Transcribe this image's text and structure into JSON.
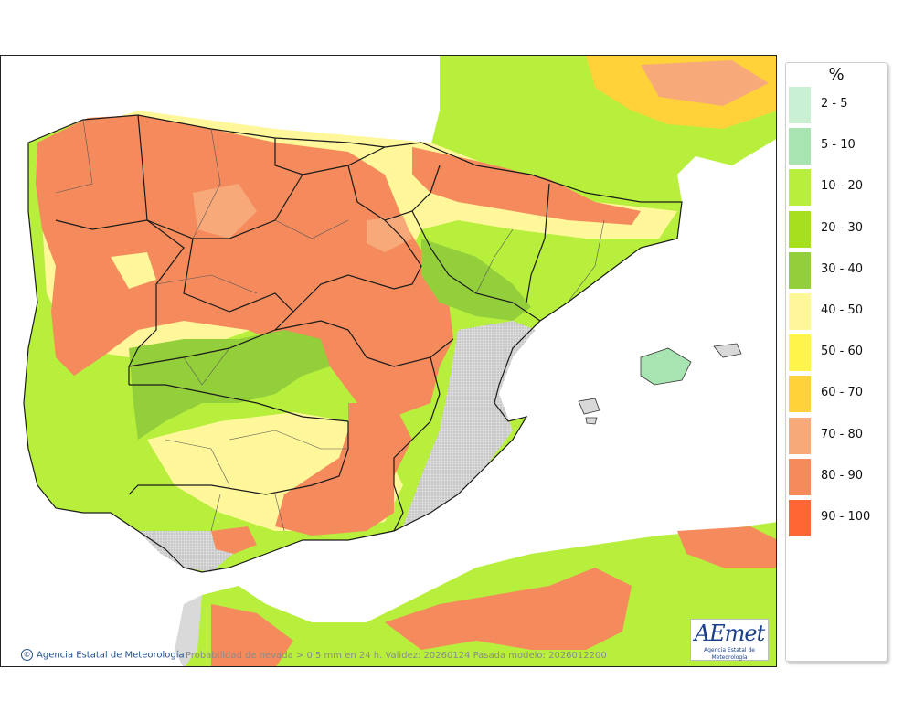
{
  "map": {
    "credit": "Agencia Estatal de Meteorología",
    "caption": "Probabilidad de nevada > 0.5 mm en 24 h. Validez: 20260124 Pasada modelo: 2026012200",
    "logo_text": "AEmet",
    "logo_subtext": "Agencia Estatal de Meteorología",
    "icons": [
      "copyright-icon"
    ],
    "colors": {
      "sea": "#ffffff",
      "no_data_land": "#d9d9d9",
      "borders": "#1a1a1a"
    }
  },
  "legend": {
    "unit": "%",
    "items": [
      {
        "label": "2 - 5",
        "color": "#c9f0d2"
      },
      {
        "label": "5 - 10",
        "color": "#a8e3b2"
      },
      {
        "label": "10 - 20",
        "color": "#b7ef3c"
      },
      {
        "label": "20 - 30",
        "color": "#a6e01c"
      },
      {
        "label": "30 - 40",
        "color": "#92cf3a"
      },
      {
        "label": "40 - 50",
        "color": "#fff79a"
      },
      {
        "label": "50 - 60",
        "color": "#fff44a"
      },
      {
        "label": "60 - 70",
        "color": "#ffd23a"
      },
      {
        "label": "70 - 80",
        "color": "#f7a97a"
      },
      {
        "label": "80 - 90",
        "color": "#f58a5c"
      },
      {
        "label": "90 - 100",
        "color": "#ff6633"
      }
    ]
  }
}
